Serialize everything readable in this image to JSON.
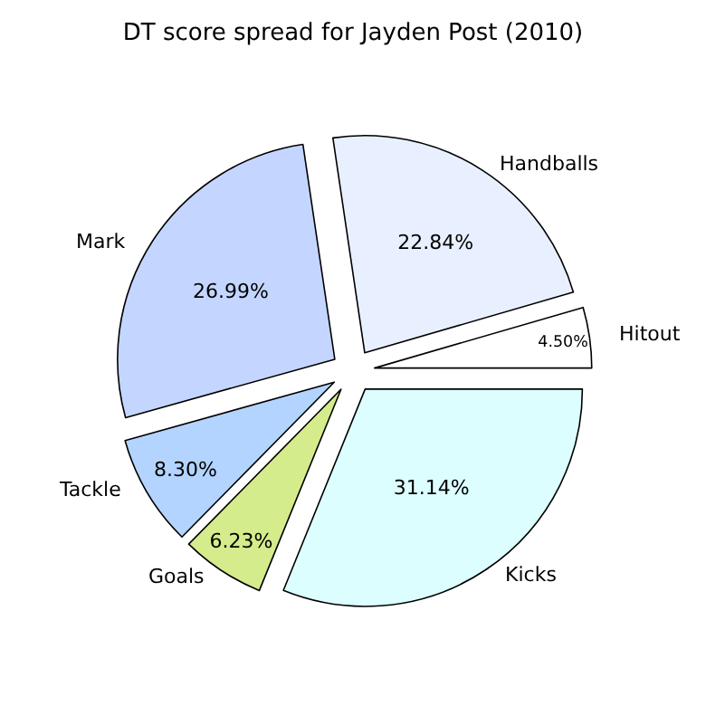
{
  "chart_data": {
    "type": "pie",
    "title": "DT score spread for Jayden Post (2010)",
    "categories": [
      "Hitout",
      "Handballs",
      "Mark",
      "Tackle",
      "Goals",
      "Kicks"
    ],
    "values": [
      4.5,
      22.84,
      26.99,
      8.3,
      6.23,
      31.14
    ],
    "colors": [
      "#ffffff",
      "#e8f0ff",
      "#c4d6ff",
      "#b3d4ff",
      "#d4ec8c",
      "#dcfefe"
    ],
    "value_labels": [
      "4.50%",
      "22.84%",
      "26.99%",
      "8.30%",
      "6.23%",
      "31.14%"
    ]
  }
}
